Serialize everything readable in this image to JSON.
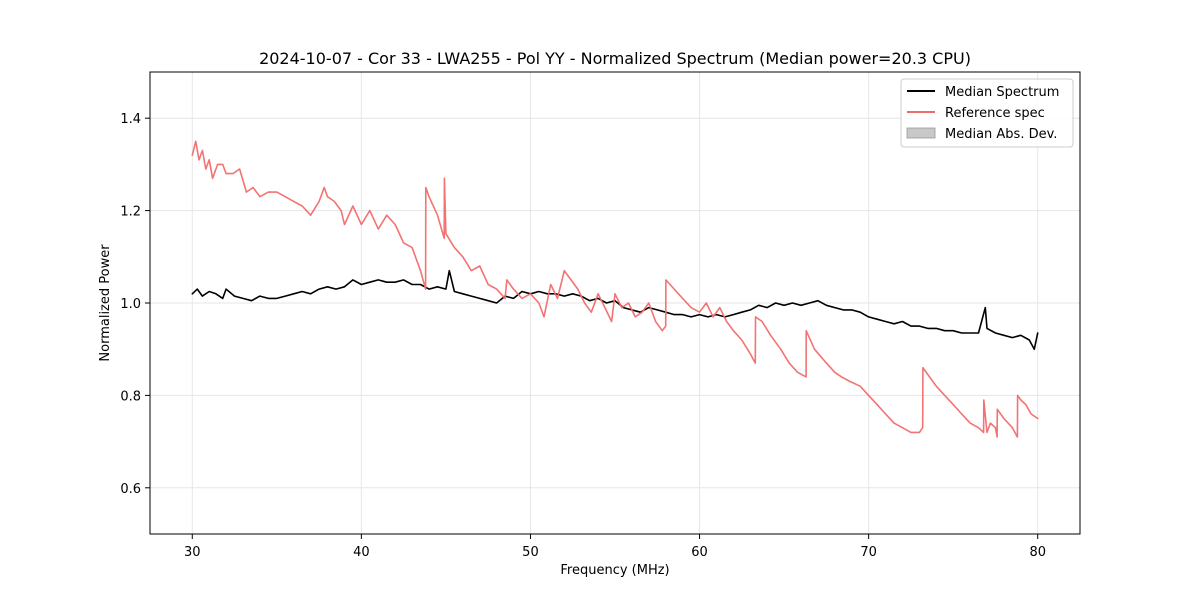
{
  "chart_data": {
    "type": "line",
    "title": "2024-10-07 - Cor 33 - LWA255 - Pol YY - Normalized Spectrum (Median power=20.3 CPU)",
    "xlabel": "Frequency (MHz)",
    "ylabel": "Normalized Power",
    "xlim": [
      27.5,
      82.5
    ],
    "ylim": [
      0.5,
      1.5
    ],
    "x_ticks": [
      30,
      40,
      50,
      60,
      70,
      80
    ],
    "y_ticks": [
      0.6,
      0.8,
      1.0,
      1.2,
      1.4
    ],
    "x_tick_labels": [
      "30",
      "40",
      "50",
      "60",
      "70",
      "80"
    ],
    "y_tick_labels": [
      "0.6",
      "0.8",
      "1.0",
      "1.2",
      "1.4"
    ],
    "grid": true,
    "legend_position": "top-right",
    "legend": [
      {
        "label": "Median Spectrum",
        "kind": "line",
        "color": "#000000"
      },
      {
        "label": "Reference spec",
        "kind": "line",
        "color": "#f26b6b"
      },
      {
        "label": "Median Abs. Dev.",
        "kind": "patch",
        "color": "#c8c8c8"
      }
    ],
    "series": [
      {
        "name": "Median Spectrum",
        "color": "#000000",
        "x": [
          30.0,
          30.3,
          30.6,
          31.0,
          31.4,
          31.8,
          32.0,
          32.5,
          33.0,
          33.5,
          34.0,
          34.5,
          35.0,
          35.5,
          36.0,
          36.5,
          37.0,
          37.5,
          38.0,
          38.5,
          39.0,
          39.5,
          40.0,
          40.5,
          41.0,
          41.5,
          42.0,
          42.5,
          43.0,
          43.5,
          44.0,
          44.5,
          45.0,
          45.2,
          45.5,
          46.0,
          46.5,
          47.0,
          47.5,
          48.0,
          48.5,
          49.0,
          49.5,
          50.0,
          50.5,
          51.0,
          51.5,
          52.0,
          52.5,
          53.0,
          53.5,
          54.0,
          54.5,
          55.0,
          55.5,
          56.0,
          56.5,
          57.0,
          57.5,
          58.0,
          58.5,
          59.0,
          59.5,
          60.0,
          60.5,
          61.0,
          61.5,
          62.0,
          62.5,
          63.0,
          63.5,
          64.0,
          64.5,
          65.0,
          65.5,
          66.0,
          66.5,
          67.0,
          67.5,
          68.0,
          68.5,
          69.0,
          69.5,
          70.0,
          70.5,
          71.0,
          71.5,
          72.0,
          72.5,
          73.0,
          73.5,
          74.0,
          74.5,
          75.0,
          75.5,
          76.0,
          76.5,
          76.9,
          77.0,
          77.5,
          78.0,
          78.5,
          79.0,
          79.5,
          79.8,
          80.0
        ],
        "values": [
          1.02,
          1.03,
          1.015,
          1.025,
          1.02,
          1.01,
          1.03,
          1.015,
          1.01,
          1.005,
          1.015,
          1.01,
          1.01,
          1.015,
          1.02,
          1.025,
          1.02,
          1.03,
          1.035,
          1.03,
          1.035,
          1.05,
          1.04,
          1.045,
          1.05,
          1.045,
          1.045,
          1.05,
          1.04,
          1.04,
          1.03,
          1.035,
          1.03,
          1.07,
          1.025,
          1.02,
          1.015,
          1.01,
          1.005,
          1.0,
          1.015,
          1.01,
          1.025,
          1.02,
          1.025,
          1.02,
          1.02,
          1.015,
          1.02,
          1.015,
          1.005,
          1.01,
          1.0,
          1.005,
          0.99,
          0.985,
          0.98,
          0.99,
          0.985,
          0.98,
          0.975,
          0.975,
          0.97,
          0.975,
          0.97,
          0.975,
          0.97,
          0.975,
          0.98,
          0.985,
          0.995,
          0.99,
          1.0,
          0.995,
          1.0,
          0.995,
          1.0,
          1.005,
          0.995,
          0.99,
          0.985,
          0.985,
          0.98,
          0.97,
          0.965,
          0.96,
          0.955,
          0.96,
          0.95,
          0.95,
          0.945,
          0.945,
          0.94,
          0.94,
          0.935,
          0.935,
          0.935,
          0.99,
          0.945,
          0.935,
          0.93,
          0.925,
          0.93,
          0.92,
          0.9,
          0.935
        ]
      },
      {
        "name": "Reference spec",
        "color": "#f26b6b",
        "x": [
          30.0,
          30.2,
          30.4,
          30.6,
          30.8,
          31.0,
          31.2,
          31.5,
          31.8,
          32.0,
          32.4,
          32.8,
          33.2,
          33.6,
          34.0,
          34.5,
          35.0,
          35.5,
          36.0,
          36.5,
          37.0,
          37.5,
          37.8,
          38.0,
          38.4,
          38.8,
          39.0,
          39.5,
          40.0,
          40.5,
          41.0,
          41.5,
          42.0,
          42.5,
          43.0,
          43.5,
          43.8,
          43.81,
          44.0,
          44.5,
          44.9,
          44.91,
          45.0,
          45.5,
          46.0,
          46.5,
          47.0,
          47.5,
          48.0,
          48.5,
          48.6,
          49.0,
          49.5,
          50.0,
          50.5,
          50.8,
          51.2,
          51.6,
          52.0,
          52.4,
          52.8,
          53.2,
          53.6,
          54.0,
          54.4,
          54.8,
          55.0,
          55.4,
          55.8,
          56.2,
          56.6,
          57.0,
          57.4,
          57.8,
          58.0,
          58.01,
          58.5,
          59.0,
          59.5,
          60.0,
          60.4,
          60.8,
          61.2,
          61.6,
          62.0,
          62.5,
          63.0,
          63.3,
          63.31,
          63.7,
          64.2,
          64.8,
          65.3,
          65.8,
          66.3,
          66.31,
          66.8,
          67.5,
          68.0,
          68.4,
          68.9,
          69.5,
          70.0,
          70.5,
          71.0,
          71.5,
          72.0,
          72.5,
          73.0,
          73.2,
          73.21,
          73.6,
          74.0,
          74.5,
          75.0,
          75.5,
          76.0,
          76.5,
          76.8,
          76.81,
          77.0,
          77.2,
          77.5,
          77.6,
          77.61,
          78.0,
          78.5,
          78.8,
          78.81,
          79.0,
          79.3,
          79.6,
          80.0
        ],
        "values": [
          1.32,
          1.35,
          1.31,
          1.33,
          1.29,
          1.31,
          1.27,
          1.3,
          1.3,
          1.28,
          1.28,
          1.29,
          1.24,
          1.25,
          1.23,
          1.24,
          1.24,
          1.23,
          1.22,
          1.21,
          1.19,
          1.22,
          1.25,
          1.23,
          1.22,
          1.2,
          1.17,
          1.21,
          1.17,
          1.2,
          1.16,
          1.19,
          1.17,
          1.13,
          1.12,
          1.07,
          1.03,
          1.25,
          1.23,
          1.19,
          1.14,
          1.27,
          1.15,
          1.12,
          1.1,
          1.07,
          1.08,
          1.04,
          1.03,
          1.01,
          1.05,
          1.03,
          1.01,
          1.02,
          1.0,
          0.97,
          1.04,
          1.01,
          1.07,
          1.05,
          1.03,
          1.0,
          0.98,
          1.02,
          0.99,
          0.96,
          1.02,
          0.99,
          1.0,
          0.97,
          0.98,
          1.0,
          0.96,
          0.94,
          0.95,
          1.05,
          1.03,
          1.01,
          0.99,
          0.98,
          1.0,
          0.97,
          0.99,
          0.96,
          0.94,
          0.92,
          0.89,
          0.87,
          0.97,
          0.96,
          0.93,
          0.9,
          0.87,
          0.85,
          0.84,
          0.94,
          0.9,
          0.87,
          0.85,
          0.84,
          0.83,
          0.82,
          0.8,
          0.78,
          0.76,
          0.74,
          0.73,
          0.72,
          0.72,
          0.73,
          0.86,
          0.84,
          0.82,
          0.8,
          0.78,
          0.76,
          0.74,
          0.73,
          0.72,
          0.79,
          0.72,
          0.74,
          0.73,
          0.71,
          0.77,
          0.75,
          0.73,
          0.71,
          0.8,
          0.79,
          0.78,
          0.76,
          0.75
        ]
      }
    ]
  }
}
